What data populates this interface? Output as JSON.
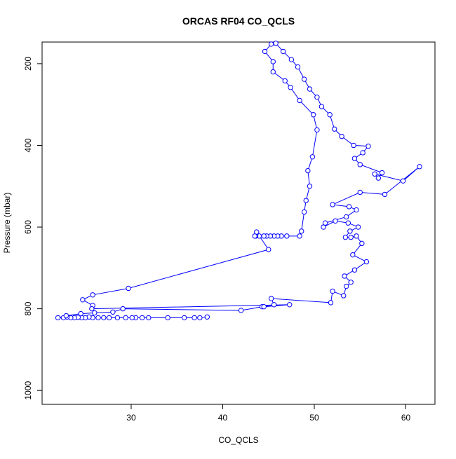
{
  "chart_data": {
    "type": "line",
    "title": "ORCAS RF04 CO_QCLS",
    "xlabel": "CO_QCLS",
    "ylabel": "Pressure (mbar)",
    "xlim": [
      20.27,
      63.18
    ],
    "ylim": [
      1034,
      147
    ],
    "xticks": [
      30,
      40,
      50,
      60
    ],
    "yticks": [
      200,
      400,
      600,
      800,
      1000
    ],
    "series": [
      {
        "color": "#0000ff",
        "x": [
          38.3,
          37.5,
          36.9,
          35.8,
          34.0,
          31.9,
          31.2,
          30.5,
          30.1,
          29.4,
          28.5,
          27.6,
          27.0,
          26.4,
          25.8,
          25.4,
          25.0,
          24.6,
          24.2,
          23.8,
          23.4,
          23.0,
          22.6,
          22.0,
          22.9,
          24.5,
          26.0,
          28.0,
          29.1,
          42.0,
          44.3,
          45.6,
          45.3,
          51.8,
          52.0,
          53.2,
          53.5,
          54.0,
          53.3,
          54.4,
          55.7,
          54.2,
          55.2,
          54.6,
          54.0,
          53.4,
          53.9,
          54.8,
          53.7,
          52.3,
          51.0,
          51.2,
          53.5,
          54.6,
          53.8,
          52.0,
          55.0,
          57.7,
          61.5,
          59.7,
          56.6,
          57.0,
          57.4,
          55.0,
          54.4,
          55.3,
          55.9,
          54.3,
          53.0,
          52.2,
          51.7,
          50.8,
          50.3,
          49.5,
          48.9,
          48.2,
          47.5,
          46.6,
          45.8,
          45.3,
          44.6,
          45.5,
          45.5,
          46.8,
          47.4,
          48.4,
          49.9,
          50.3,
          49.8,
          49.3,
          49.5,
          49.1,
          48.9,
          48.6,
          48.4,
          47.0,
          46.4,
          46.0,
          45.6,
          45.2,
          44.8,
          44.5,
          44.0,
          43.6,
          43.5,
          43.7,
          45.0,
          29.7,
          25.8,
          24.7,
          25.8,
          25.7,
          47.3,
          44.5
        ],
        "values": [
          820,
          822,
          822,
          822,
          822,
          822,
          822,
          822,
          822,
          822,
          822,
          822,
          822,
          822,
          822,
          820,
          822,
          822,
          821,
          822,
          822,
          820,
          822,
          822,
          817,
          812,
          810,
          808,
          800,
          804,
          795,
          790,
          775,
          785,
          757,
          768,
          745,
          735,
          720,
          705,
          685,
          668,
          640,
          622,
          625,
          625,
          610,
          600,
          590,
          585,
          600,
          590,
          575,
          558,
          550,
          545,
          515,
          520,
          452,
          487,
          470,
          480,
          467,
          447,
          432,
          418,
          402,
          400,
          378,
          360,
          325,
          305,
          282,
          262,
          238,
          208,
          190,
          170,
          150,
          152,
          170,
          195,
          220,
          242,
          258,
          290,
          325,
          362,
          428,
          462,
          500,
          535,
          563,
          610,
          622,
          622,
          622,
          622,
          622,
          622,
          622,
          622,
          622,
          622,
          622,
          612,
          655,
          750,
          766,
          778,
          792,
          800,
          790,
          795
        ]
      }
    ]
  }
}
